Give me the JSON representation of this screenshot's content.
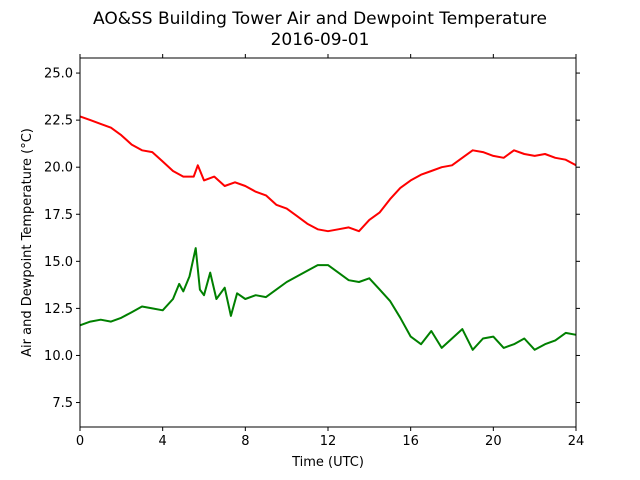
{
  "chart_data": {
    "type": "line",
    "title": "AO&SS Building Tower Air and Dewpoint Temperature",
    "subtitle": "2016-09-01",
    "xlabel": "Time (UTC)",
    "ylabel": "Air and Dewpoint Temperature (°C)",
    "xlim": [
      0,
      24
    ],
    "ylim": [
      6.2,
      25.8
    ],
    "xticks": [
      0,
      4,
      8,
      12,
      16,
      20,
      24
    ],
    "yticks": [
      7.5,
      10.0,
      12.5,
      15.0,
      17.5,
      20.0,
      22.5,
      25.0
    ],
    "xtick_labels": [
      "0",
      "4",
      "8",
      "12",
      "16",
      "20",
      "24"
    ],
    "ytick_labels": [
      "7.5",
      "10.0",
      "12.5",
      "15.0",
      "17.5",
      "20.0",
      "22.5",
      "25.0"
    ],
    "grid": false,
    "series": [
      {
        "color": "#ff0000",
        "x": [
          0,
          0.5,
          1,
          1.5,
          2,
          2.5,
          3,
          3.5,
          4,
          4.5,
          5,
          5.5,
          5.7,
          6,
          6.5,
          7,
          7.5,
          8,
          8.5,
          9,
          9.5,
          10,
          10.5,
          11,
          11.5,
          12,
          12.5,
          13,
          13.5,
          14,
          14.5,
          15,
          15.5,
          16,
          16.5,
          17,
          17.5,
          18,
          18.5,
          19,
          19.5,
          20,
          20.5,
          21,
          21.5,
          22,
          22.5,
          23,
          23.5,
          24
        ],
        "y": [
          22.7,
          22.5,
          22.3,
          22.1,
          21.7,
          21.2,
          20.9,
          20.8,
          20.3,
          19.8,
          19.5,
          19.5,
          20.1,
          19.3,
          19.5,
          19.0,
          19.2,
          19.0,
          18.7,
          18.5,
          18.0,
          17.8,
          17.4,
          17.0,
          16.7,
          16.6,
          16.7,
          16.8,
          16.6,
          17.2,
          17.6,
          18.3,
          18.9,
          19.3,
          19.6,
          19.8,
          20.0,
          20.1,
          20.5,
          20.9,
          20.8,
          20.6,
          20.5,
          20.9,
          20.7,
          20.6,
          20.7,
          20.5,
          20.4,
          20.1
        ]
      },
      {
        "color": "#008000",
        "x": [
          0,
          0.5,
          1,
          1.5,
          2,
          2.5,
          3,
          3.5,
          4,
          4.5,
          4.8,
          5,
          5.3,
          5.6,
          5.8,
          6,
          6.3,
          6.6,
          7,
          7.3,
          7.6,
          8,
          8.5,
          9,
          9.5,
          10,
          10.5,
          11,
          11.5,
          12,
          12.5,
          13,
          13.5,
          14,
          14.5,
          15,
          15.5,
          16,
          16.5,
          17,
          17.5,
          18,
          18.5,
          19,
          19.5,
          20,
          20.5,
          21,
          21.5,
          22,
          22.5,
          23,
          23.5,
          24
        ],
        "y": [
          11.6,
          11.8,
          11.9,
          11.8,
          12.0,
          12.3,
          12.6,
          12.5,
          12.4,
          13.0,
          13.8,
          13.4,
          14.2,
          15.7,
          13.5,
          13.2,
          14.4,
          13.0,
          13.6,
          12.1,
          13.3,
          13.0,
          13.2,
          13.1,
          13.5,
          13.9,
          14.2,
          14.5,
          14.8,
          14.8,
          14.4,
          14.0,
          13.9,
          14.1,
          13.5,
          12.9,
          12.0,
          11.0,
          10.6,
          11.3,
          10.4,
          10.9,
          11.4,
          10.3,
          10.9,
          11.0,
          10.4,
          10.6,
          10.9,
          10.3,
          10.6,
          10.8,
          11.2,
          11.1
        ]
      }
    ]
  }
}
